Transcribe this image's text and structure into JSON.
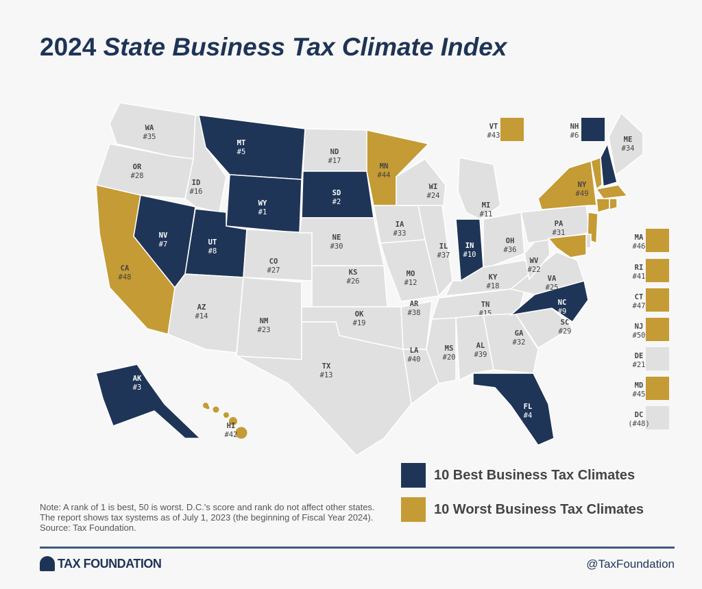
{
  "title_year": "2024",
  "title_rest": "State Business Tax Climate Index",
  "colors": {
    "best": "#1f3557",
    "worst": "#c49b35",
    "other": "#e0e0e0",
    "border": "#ffffff"
  },
  "states": [
    {
      "abbr": "WA",
      "rank": "#35",
      "cat": "other"
    },
    {
      "abbr": "OR",
      "rank": "#28",
      "cat": "other"
    },
    {
      "abbr": "CA",
      "rank": "#48",
      "cat": "worst"
    },
    {
      "abbr": "NV",
      "rank": "#7",
      "cat": "best"
    },
    {
      "abbr": "ID",
      "rank": "#16",
      "cat": "other"
    },
    {
      "abbr": "MT",
      "rank": "#5",
      "cat": "best"
    },
    {
      "abbr": "WY",
      "rank": "#1",
      "cat": "best"
    },
    {
      "abbr": "UT",
      "rank": "#8",
      "cat": "best"
    },
    {
      "abbr": "CO",
      "rank": "#27",
      "cat": "other"
    },
    {
      "abbr": "AZ",
      "rank": "#14",
      "cat": "other"
    },
    {
      "abbr": "NM",
      "rank": "#23",
      "cat": "other"
    },
    {
      "abbr": "ND",
      "rank": "#17",
      "cat": "other"
    },
    {
      "abbr": "SD",
      "rank": "#2",
      "cat": "best"
    },
    {
      "abbr": "NE",
      "rank": "#30",
      "cat": "other"
    },
    {
      "abbr": "KS",
      "rank": "#26",
      "cat": "other"
    },
    {
      "abbr": "OK",
      "rank": "#19",
      "cat": "other"
    },
    {
      "abbr": "TX",
      "rank": "#13",
      "cat": "other"
    },
    {
      "abbr": "MN",
      "rank": "#44",
      "cat": "worst"
    },
    {
      "abbr": "IA",
      "rank": "#33",
      "cat": "other"
    },
    {
      "abbr": "MO",
      "rank": "#12",
      "cat": "other"
    },
    {
      "abbr": "AR",
      "rank": "#38",
      "cat": "other"
    },
    {
      "abbr": "LA",
      "rank": "#40",
      "cat": "other"
    },
    {
      "abbr": "WI",
      "rank": "#24",
      "cat": "other"
    },
    {
      "abbr": "IL",
      "rank": "#37",
      "cat": "other"
    },
    {
      "abbr": "MI",
      "rank": "#11",
      "cat": "other"
    },
    {
      "abbr": "IN",
      "rank": "#10",
      "cat": "best"
    },
    {
      "abbr": "OH",
      "rank": "#36",
      "cat": "other"
    },
    {
      "abbr": "KY",
      "rank": "#18",
      "cat": "other"
    },
    {
      "abbr": "TN",
      "rank": "#15",
      "cat": "other"
    },
    {
      "abbr": "MS",
      "rank": "#20",
      "cat": "other"
    },
    {
      "abbr": "AL",
      "rank": "#39",
      "cat": "other"
    },
    {
      "abbr": "GA",
      "rank": "#32",
      "cat": "other"
    },
    {
      "abbr": "FL",
      "rank": "#4",
      "cat": "best"
    },
    {
      "abbr": "SC",
      "rank": "#29",
      "cat": "other"
    },
    {
      "abbr": "NC",
      "rank": "#9",
      "cat": "best"
    },
    {
      "abbr": "VA",
      "rank": "#25",
      "cat": "other"
    },
    {
      "abbr": "WV",
      "rank": "#22",
      "cat": "other"
    },
    {
      "abbr": "PA",
      "rank": "#31",
      "cat": "other"
    },
    {
      "abbr": "NY",
      "rank": "#49",
      "cat": "worst"
    },
    {
      "abbr": "ME",
      "rank": "#34",
      "cat": "other"
    },
    {
      "abbr": "AK",
      "rank": "#3",
      "cat": "best"
    },
    {
      "abbr": "HI",
      "rank": "#42",
      "cat": "worst"
    },
    {
      "abbr": "VT",
      "rank": "#43",
      "cat": "worst"
    },
    {
      "abbr": "NH",
      "rank": "#6",
      "cat": "best"
    },
    {
      "abbr": "MA",
      "rank": "#46",
      "cat": "worst"
    },
    {
      "abbr": "RI",
      "rank": "#41",
      "cat": "worst"
    },
    {
      "abbr": "CT",
      "rank": "#47",
      "cat": "worst"
    },
    {
      "abbr": "NJ",
      "rank": "#50",
      "cat": "worst"
    },
    {
      "abbr": "DE",
      "rank": "#21",
      "cat": "other"
    },
    {
      "abbr": "MD",
      "rank": "#45",
      "cat": "worst"
    },
    {
      "abbr": "DC",
      "rank": "(#48)",
      "cat": "other"
    }
  ],
  "legend": {
    "best": "10 Best Business Tax Climates",
    "worst": "10 Worst Business Tax Climates"
  },
  "note": "Note: A rank of 1 is best, 50 is worst. D.C.'s score and rank do not affect other states. The report shows tax systems as of July 1, 2023 (the beginning of Fiscal Year 2024).",
  "source": "Source: Tax Foundation.",
  "logo_text": "TAX FOUNDATION",
  "handle": "@TaxFoundation"
}
